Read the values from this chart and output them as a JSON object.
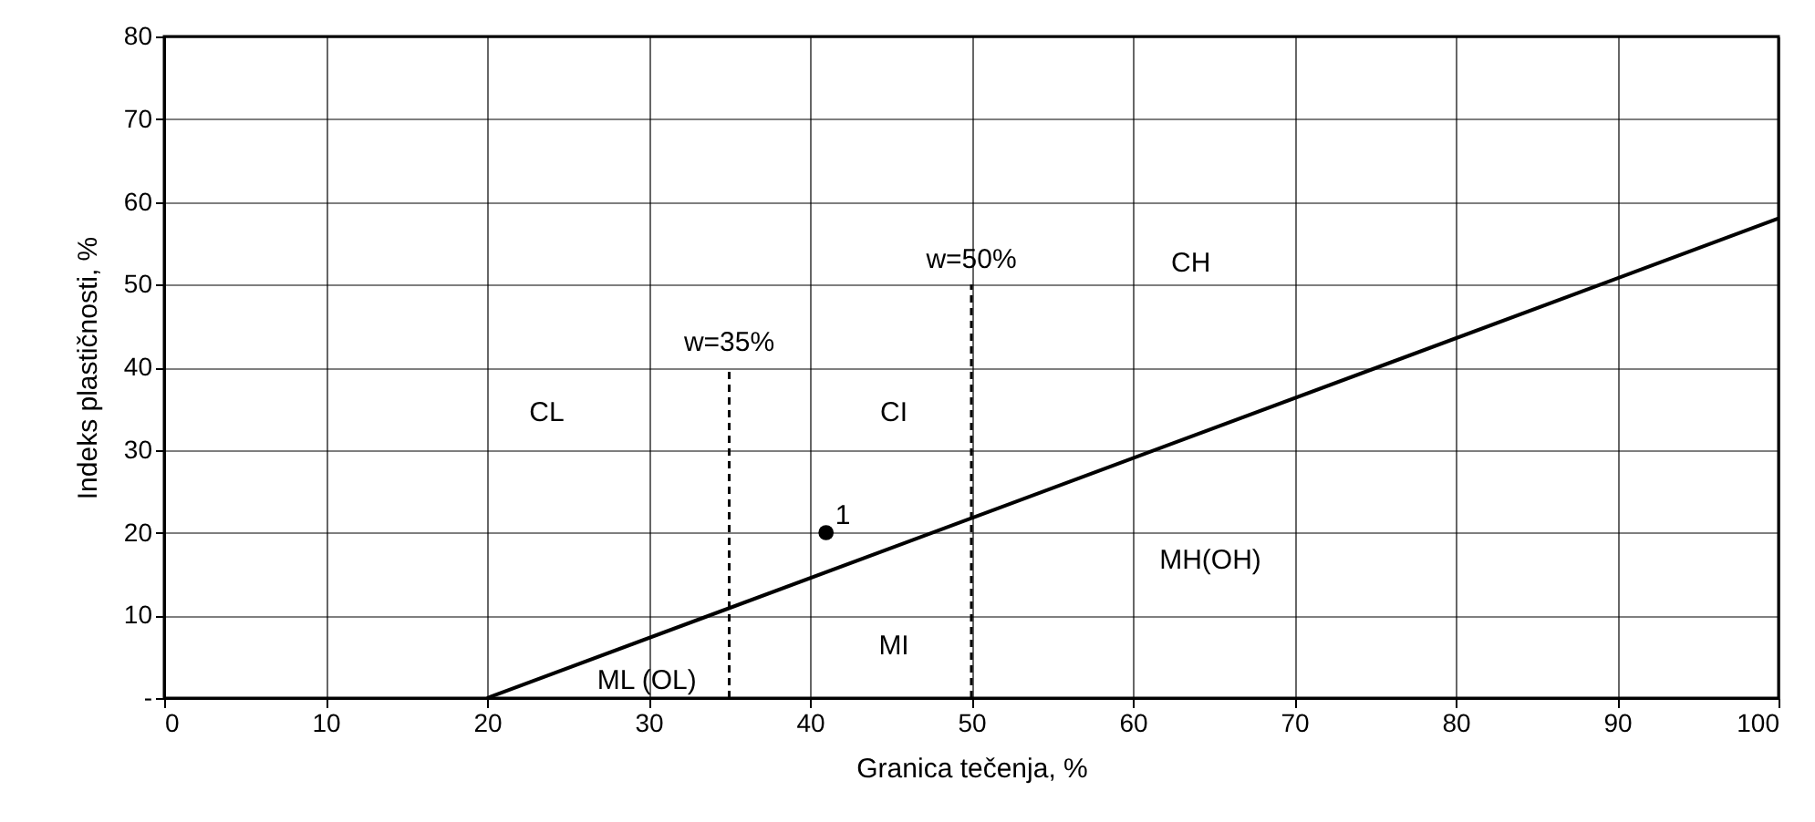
{
  "chart_data": {
    "type": "line",
    "xlabel": "Granica tečenja, %",
    "ylabel": "Indeks plastičnosti, %",
    "xlim": [
      0,
      100
    ],
    "xticks": [
      0,
      10,
      20,
      30,
      40,
      50,
      60,
      70,
      80,
      90,
      100
    ],
    "ylim": [
      0,
      80
    ],
    "yticks": [
      {
        "value": 0,
        "label": "-"
      },
      10,
      20,
      30,
      40,
      50,
      60,
      70,
      80
    ],
    "grid": true,
    "series": [
      {
        "color": "#000000",
        "x": [
          20,
          100
        ],
        "values": [
          0,
          58
        ],
        "line_style": "solid",
        "marker": "none"
      },
      {
        "color": "#000000",
        "x": [
          35,
          35
        ],
        "values": [
          0,
          40
        ],
        "line_style": "dashed",
        "marker": "none"
      },
      {
        "color": "#000000",
        "x": [
          50,
          50
        ],
        "values": [
          0,
          50
        ],
        "line_style": "dashed",
        "marker": "none"
      },
      {
        "type": "scatter",
        "color": "#000000",
        "x": [
          41
        ],
        "values": [
          20
        ],
        "marker": "circle"
      }
    ],
    "annotations": [
      "CL",
      "CI",
      "CH",
      "MH(OH)",
      "MI",
      "ML (OL)",
      {
        "text": "w=35%",
        "x": 35,
        "y": 40
      },
      {
        "text": "w=50%",
        "x": 50,
        "y": 50
      },
      {
        "text": "1",
        "x": 41,
        "y": 20
      }
    ]
  }
}
